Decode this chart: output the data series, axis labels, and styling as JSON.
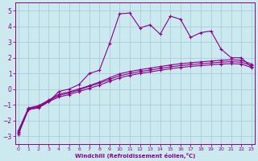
{
  "xlabel": "Windchill (Refroidissement éolien,°C)",
  "bg_color": "#cce9f0",
  "grid_color": "#aacdd8",
  "line_color": "#880088",
  "x_ticks": [
    0,
    1,
    2,
    3,
    4,
    5,
    6,
    7,
    8,
    9,
    10,
    11,
    12,
    13,
    14,
    15,
    16,
    17,
    18,
    19,
    20,
    21,
    22,
    23
  ],
  "y_ticks": [
    -3,
    -2,
    -1,
    0,
    1,
    2,
    3,
    4,
    5
  ],
  "xlim": [
    -0.3,
    23.3
  ],
  "ylim": [
    -3.5,
    5.5
  ],
  "s1_x": [
    0,
    1,
    2,
    3,
    4,
    5,
    6,
    7,
    8,
    9,
    10,
    11,
    12,
    13,
    14,
    15,
    16,
    17,
    18,
    19,
    20,
    21,
    22,
    23
  ],
  "s1_y": [
    -2.8,
    -1.3,
    -1.2,
    -0.8,
    -0.15,
    0.0,
    0.3,
    1.0,
    1.2,
    2.9,
    4.8,
    4.85,
    3.9,
    4.1,
    3.5,
    4.65,
    4.45,
    3.3,
    3.6,
    3.7,
    2.55,
    2.0,
    2.0,
    1.4
  ],
  "s2_x": [
    0,
    1,
    2,
    3,
    4,
    5,
    6,
    7,
    8,
    9,
    10,
    11,
    12,
    13,
    14,
    15,
    16,
    17,
    18,
    19,
    20,
    21,
    22,
    23
  ],
  "s2_y": [
    -2.9,
    -1.3,
    -1.15,
    -0.8,
    -0.5,
    -0.35,
    -0.15,
    0.05,
    0.25,
    0.5,
    0.72,
    0.88,
    1.0,
    1.1,
    1.2,
    1.3,
    1.38,
    1.45,
    1.5,
    1.55,
    1.6,
    1.62,
    1.6,
    1.38
  ],
  "s3_x": [
    0,
    1,
    2,
    3,
    4,
    5,
    6,
    7,
    8,
    9,
    10,
    11,
    12,
    13,
    14,
    15,
    16,
    17,
    18,
    19,
    20,
    21,
    22,
    23
  ],
  "s3_y": [
    -2.75,
    -1.25,
    -1.1,
    -0.75,
    -0.4,
    -0.25,
    -0.05,
    0.18,
    0.38,
    0.62,
    0.85,
    1.0,
    1.12,
    1.22,
    1.32,
    1.42,
    1.5,
    1.56,
    1.62,
    1.67,
    1.72,
    1.75,
    1.72,
    1.5
  ],
  "s4_x": [
    0,
    1,
    2,
    3,
    4,
    5,
    6,
    7,
    8,
    9,
    10,
    11,
    12,
    13,
    14,
    15,
    16,
    17,
    18,
    19,
    20,
    21,
    22,
    23
  ],
  "s4_y": [
    -2.65,
    -1.2,
    -1.05,
    -0.7,
    -0.32,
    -0.18,
    0.02,
    0.22,
    0.45,
    0.72,
    0.98,
    1.12,
    1.24,
    1.34,
    1.44,
    1.54,
    1.62,
    1.68,
    1.74,
    1.79,
    1.84,
    1.87,
    1.84,
    1.6
  ]
}
